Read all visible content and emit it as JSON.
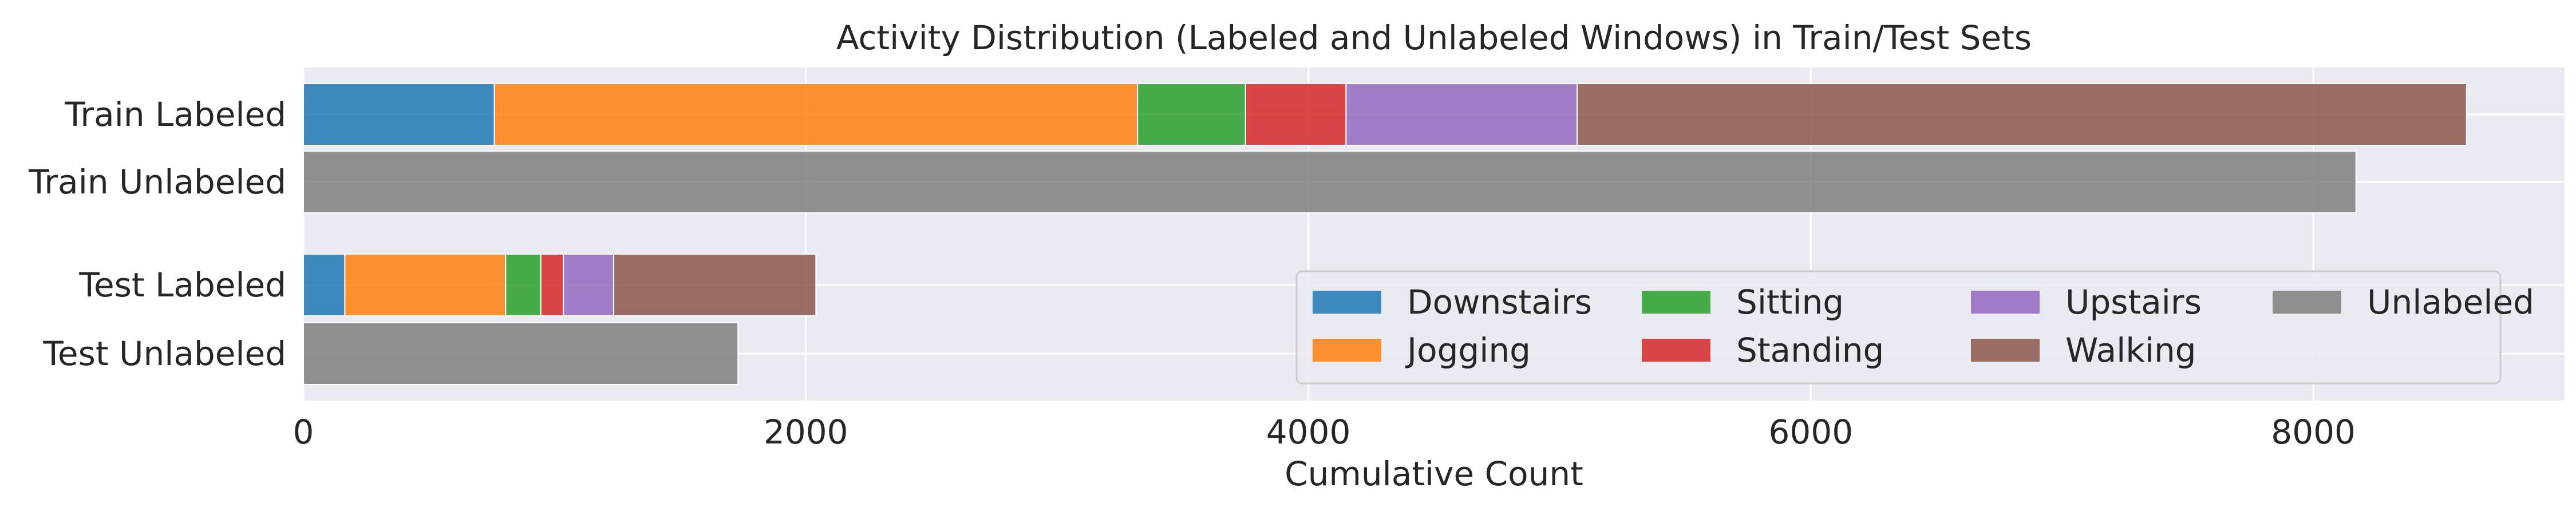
{
  "chart_data": {
    "type": "bar",
    "orientation": "horizontal",
    "stacked": true,
    "title": "Activity Distribution (Labeled and Unlabeled Windows) in Train/Test Sets",
    "xlabel": "Cumulative Count",
    "ylabel": "",
    "xlim": [
      0,
      9000
    ],
    "xticks": [
      0,
      2000,
      4000,
      6000,
      8000
    ],
    "xtick_labels": [
      "0",
      "2000",
      "4000",
      "6000",
      "8000"
    ],
    "grid": true,
    "legend_position": "lower-right",
    "legend_columns": 4,
    "categories": [
      "Train Labeled",
      "Train Unlabeled",
      "Test Labeled",
      "Test Unlabeled"
    ],
    "series": [
      {
        "name": "Downstairs",
        "color": "#1f77b4",
        "values": [
          760,
          0,
          165,
          0
        ]
      },
      {
        "name": "Jogging",
        "color": "#ff7f0e",
        "values": [
          2560,
          0,
          640,
          0
        ]
      },
      {
        "name": "Sitting",
        "color": "#2ca02c",
        "values": [
          430,
          0,
          140,
          0
        ]
      },
      {
        "name": "Standing",
        "color": "#d62728",
        "values": [
          400,
          0,
          90,
          0
        ]
      },
      {
        "name": "Upstairs",
        "color": "#9467bd",
        "values": [
          920,
          0,
          200,
          0
        ]
      },
      {
        "name": "Walking",
        "color": "#8c564b",
        "values": [
          3540,
          0,
          805,
          0
        ]
      },
      {
        "name": "Unlabeled",
        "color": "#7f7f7f",
        "values": [
          0,
          8170,
          0,
          1730
        ]
      }
    ],
    "colors": {
      "plot_background": "#eaeaf2",
      "grid": "#ffffff",
      "text": "#262626"
    }
  }
}
